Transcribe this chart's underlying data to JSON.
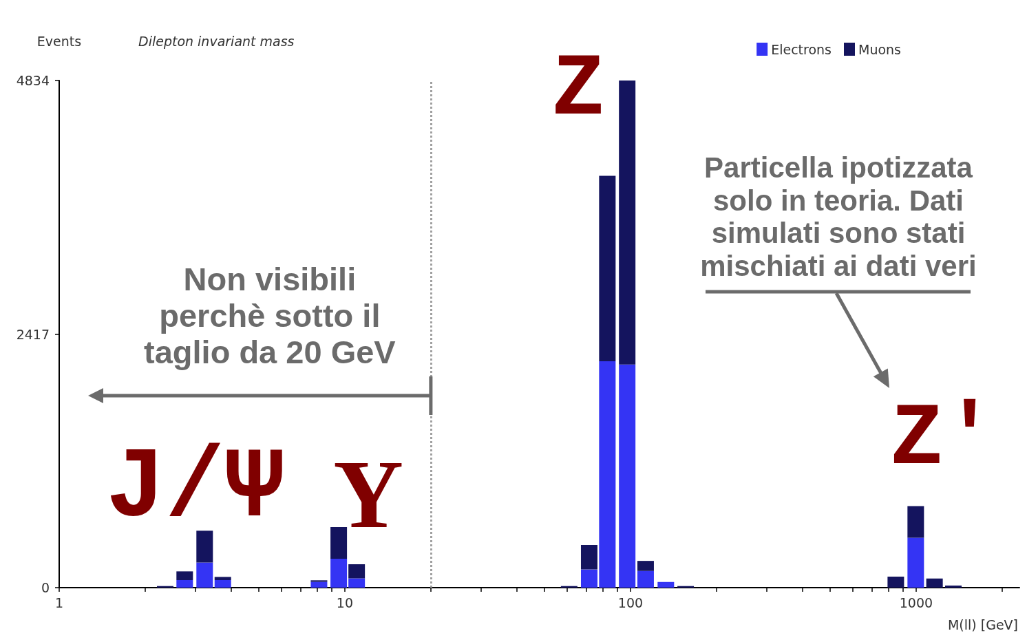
{
  "chart_data": {
    "type": "bar",
    "title": "Dilepton invariant mass",
    "xlabel": "M(ll) [GeV]",
    "ylabel": "Events",
    "log": "x",
    "stacked": true,
    "x": [
      2.35,
      2.75,
      3.23,
      3.74,
      8.12,
      9.52,
      11.0,
      61.0,
      71.7,
      83.0,
      97.4,
      113,
      133,
      156,
      849,
      997,
      1160,
      1350
    ],
    "series": [
      {
        "name": "Electrons",
        "color": "#3434f4",
        "values": [
          0,
          72,
          240,
          72,
          55,
          275,
          89,
          0,
          173,
          2158,
          2127,
          159,
          54,
          0,
          0,
          476,
          0,
          0
        ]
      },
      {
        "name": "Muons",
        "color": "#14145e",
        "values": [
          15,
          83,
          302,
          30,
          15,
          302,
          134,
          15,
          234,
          1768,
          2707,
          96,
          0,
          15,
          105,
          302,
          87,
          20
        ]
      }
    ],
    "xlim": [
      1,
      2300
    ],
    "xticks": [
      1,
      {
        "value": 2,
        "label": null
      },
      {
        "value": 3,
        "label": null
      },
      {
        "value": 4,
        "label": null
      },
      {
        "value": 5,
        "label": null
      },
      {
        "value": 6,
        "label": null
      },
      {
        "value": 7,
        "label": null
      },
      {
        "value": 8,
        "label": null
      },
      {
        "value": 9,
        "label": null
      },
      10,
      {
        "value": 20,
        "label": null
      },
      {
        "value": 30,
        "label": null
      },
      {
        "value": 40,
        "label": null
      },
      {
        "value": 50,
        "label": null
      },
      {
        "value": 60,
        "label": null
      },
      {
        "value": 70,
        "label": null
      },
      {
        "value": 80,
        "label": null
      },
      {
        "value": 90,
        "label": null
      },
      100,
      {
        "value": 200,
        "label": null
      },
      {
        "value": 300,
        "label": null
      },
      {
        "value": 400,
        "label": null
      },
      {
        "value": 500,
        "label": null
      },
      {
        "value": 600,
        "label": null
      },
      {
        "value": 700,
        "label": null
      },
      {
        "value": 800,
        "label": null
      },
      {
        "value": 900,
        "label": null
      },
      1000,
      {
        "value": 2000,
        "label": null
      }
    ],
    "ylim": [
      0,
      4834
    ],
    "yticks": [
      0,
      2417,
      4834
    ],
    "grid": false,
    "legend": "top right",
    "ref_lines": [
      {
        "axis": "x",
        "value": 20,
        "color": "#a0a0a0",
        "line_style": "dotted"
      }
    ],
    "annotations": [
      {
        "text": "Non visibili\nperchè sotto il\ntaglio da 20 GeV",
        "x": 20,
        "y": 1830
      },
      {
        "text": "J/Ψ",
        "x": 3.23,
        "y": 542
      },
      {
        "text": "Υ",
        "x": 9.52,
        "y": 577
      },
      {
        "text": "Z",
        "x": 97.4,
        "y": 4834
      },
      {
        "text": "Z'",
        "x": 997,
        "y": 778
      },
      "Particella ipotizzata\nsolo in teoria. Dati\nsimulati sono stati\nmischiati ai dati veri"
    ]
  }
}
